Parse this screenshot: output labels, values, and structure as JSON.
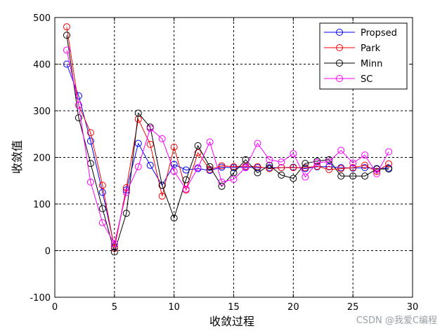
{
  "chart_data": {
    "type": "line",
    "xlabel": "收敛过程",
    "ylabel": "收敛值",
    "xlim": [
      0,
      30
    ],
    "ylim": [
      -100,
      500
    ],
    "xticks": [
      "0",
      "5",
      "10",
      "15",
      "20",
      "25",
      "30"
    ],
    "yticks": [
      "-100",
      "0",
      "100",
      "200",
      "300",
      "400",
      "500"
    ],
    "grid": true,
    "grid_style": "dashed",
    "marker": "open-circle",
    "legend_position": "top-right",
    "x": [
      1,
      2,
      3,
      4,
      5,
      6,
      7,
      8,
      9,
      10,
      11,
      12,
      13,
      14,
      15,
      16,
      17,
      18,
      19,
      20,
      21,
      22,
      23,
      24,
      25,
      26,
      27,
      28
    ],
    "series": [
      {
        "name": "Propsed",
        "color": "#0000ff",
        "values": [
          400,
          332,
          235,
          125,
          8,
          130,
          230,
          183,
          140,
          185,
          173,
          176,
          172,
          179,
          178,
          179,
          178,
          178,
          178,
          179,
          176,
          180,
          180,
          178,
          177,
          178,
          176,
          177
        ]
      },
      {
        "name": "Park",
        "color": "#ff0000",
        "values": [
          480,
          312,
          253,
          140,
          5,
          135,
          282,
          228,
          117,
          222,
          130,
          210,
          174,
          182,
          180,
          181,
          180,
          176,
          178,
          178,
          178,
          181,
          174,
          176,
          178,
          183,
          170,
          186
        ]
      },
      {
        "name": "Minn",
        "color": "#000000",
        "values": [
          462,
          285,
          187,
          90,
          -3,
          80,
          295,
          265,
          140,
          70,
          152,
          225,
          180,
          138,
          167,
          195,
          167,
          183,
          162,
          155,
          187,
          192,
          195,
          160,
          160,
          160,
          175,
          175
        ]
      },
      {
        "name": "SC",
        "color": "#ff00ff",
        "values": [
          430,
          312,
          147,
          60,
          15,
          125,
          180,
          262,
          240,
          170,
          132,
          178,
          233,
          147,
          153,
          178,
          230,
          195,
          190,
          208,
          158,
          189,
          191,
          215,
          188,
          205,
          165,
          212
        ]
      }
    ]
  },
  "watermark": "CSDN @我爱C编程"
}
